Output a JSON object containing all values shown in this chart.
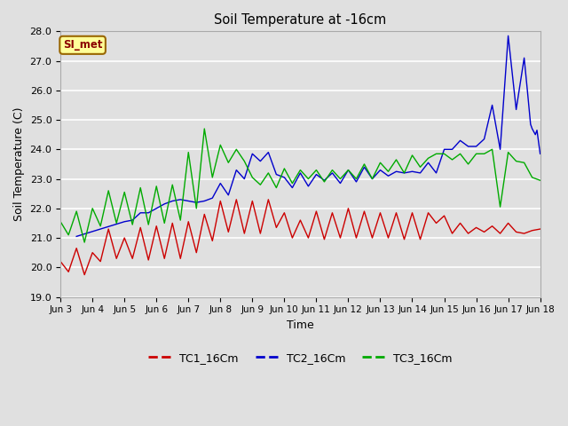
{
  "title": "Soil Temperature at -16cm",
  "xlabel": "Time",
  "ylabel": "Soil Temperature (C)",
  "ylim": [
    19.0,
    28.0
  ],
  "yticks": [
    19.0,
    20.0,
    21.0,
    22.0,
    23.0,
    24.0,
    25.0,
    26.0,
    27.0,
    28.0
  ],
  "xtick_labels": [
    "Jun 3",
    "Jun 4",
    "Jun 5",
    "Jun 6",
    "Jun 7",
    "Jun 8",
    "Jun 9",
    "Jun 10",
    "Jun 11",
    "Jun 12",
    "Jun 13",
    "Jun 14",
    "Jun 15",
    "Jun 16",
    "Jun 17",
    "Jun 18"
  ],
  "annotation_text": "SI_met",
  "annotation_color": "#8B0000",
  "annotation_bg": "#FFFF99",
  "annotation_border": "#996600",
  "tc1_color": "#CC0000",
  "tc2_color": "#0000CC",
  "tc3_color": "#00AA00",
  "background_color": "#E0E0E0",
  "plot_bg": "#E0E0E0",
  "grid_color": "#FFFFFF",
  "tc1_label": "TC1_16Cm",
  "tc2_label": "TC2_16Cm",
  "tc3_label": "TC3_16Cm",
  "tc1_x": [
    0.0,
    0.25,
    0.5,
    0.75,
    1.0,
    1.25,
    1.5,
    1.75,
    2.0,
    2.25,
    2.5,
    2.75,
    3.0,
    3.25,
    3.5,
    3.75,
    4.0,
    4.25,
    4.5,
    4.75,
    5.0,
    5.25,
    5.5,
    5.75,
    6.0,
    6.25,
    6.5,
    6.75,
    7.0,
    7.25,
    7.5,
    7.75,
    8.0,
    8.25,
    8.5,
    8.75,
    9.0,
    9.25,
    9.5,
    9.75,
    10.0,
    10.25,
    10.5,
    10.75,
    11.0,
    11.25,
    11.5,
    11.75,
    12.0,
    12.25,
    12.5,
    12.75,
    13.0,
    13.25,
    13.5,
    13.75,
    14.0,
    14.25,
    14.5,
    14.75,
    15.0
  ],
  "tc1_values": [
    20.2,
    19.85,
    20.65,
    19.75,
    20.5,
    20.2,
    21.3,
    20.3,
    21.0,
    20.3,
    21.35,
    20.25,
    21.4,
    20.3,
    21.5,
    20.3,
    21.55,
    20.5,
    21.8,
    20.9,
    22.25,
    21.2,
    22.3,
    21.15,
    22.25,
    21.15,
    22.3,
    21.35,
    21.85,
    21.0,
    21.6,
    21.0,
    21.9,
    20.95,
    21.85,
    21.0,
    22.0,
    21.0,
    21.9,
    21.0,
    21.85,
    21.0,
    21.85,
    20.95,
    21.85,
    20.95,
    21.85,
    21.5,
    21.75,
    21.15,
    21.5,
    21.15,
    21.35,
    21.2,
    21.4,
    21.15,
    21.5,
    21.2,
    21.15,
    21.25,
    21.3
  ],
  "tc2_x": [
    0.5,
    2.0,
    2.25,
    2.5,
    2.75,
    3.0,
    3.25,
    3.5,
    3.75,
    4.0,
    4.25,
    4.5,
    4.75,
    5.0,
    5.25,
    5.5,
    5.75,
    6.0,
    6.25,
    6.5,
    6.75,
    7.0,
    7.25,
    7.5,
    7.75,
    8.0,
    8.25,
    8.5,
    8.75,
    9.0,
    9.25,
    9.5,
    9.75,
    10.0,
    10.25,
    10.5,
    10.75,
    11.0,
    11.25,
    11.5,
    11.75,
    12.0,
    12.25,
    12.5,
    12.75,
    13.0,
    13.25,
    13.5,
    13.75,
    14.0,
    14.25,
    14.5,
    14.6,
    14.7,
    14.75,
    14.85,
    14.9,
    15.0
  ],
  "tc2_values": [
    21.05,
    21.55,
    21.6,
    21.85,
    21.85,
    22.0,
    22.15,
    22.25,
    22.3,
    22.25,
    22.2,
    22.25,
    22.35,
    22.85,
    22.45,
    23.3,
    23.0,
    23.85,
    23.6,
    23.9,
    23.15,
    23.05,
    22.7,
    23.2,
    22.75,
    23.15,
    22.95,
    23.2,
    22.85,
    23.3,
    22.9,
    23.4,
    23.0,
    23.3,
    23.1,
    23.25,
    23.2,
    23.25,
    23.2,
    23.55,
    23.2,
    24.0,
    24.0,
    24.3,
    24.1,
    24.1,
    24.35,
    25.5,
    24.0,
    27.85,
    25.35,
    27.1,
    26.0,
    24.85,
    24.7,
    24.5,
    24.65,
    23.85
  ],
  "tc3_x": [
    0.0,
    0.25,
    0.5,
    0.75,
    1.0,
    1.25,
    1.5,
    1.75,
    2.0,
    2.25,
    2.5,
    2.75,
    3.0,
    3.25,
    3.5,
    3.75,
    4.0,
    4.25,
    4.5,
    4.75,
    5.0,
    5.25,
    5.5,
    5.75,
    6.0,
    6.25,
    6.5,
    6.75,
    7.0,
    7.25,
    7.5,
    7.75,
    8.0,
    8.25,
    8.5,
    8.75,
    9.0,
    9.25,
    9.5,
    9.75,
    10.0,
    10.25,
    10.5,
    10.75,
    11.0,
    11.25,
    11.5,
    11.75,
    12.0,
    12.25,
    12.5,
    12.75,
    13.0,
    13.25,
    13.5,
    13.75,
    14.0,
    14.25,
    14.5,
    14.75,
    15.0
  ],
  "tc3_values": [
    21.55,
    21.1,
    21.9,
    20.85,
    22.0,
    21.4,
    22.6,
    21.5,
    22.55,
    21.45,
    22.7,
    21.45,
    22.75,
    21.5,
    22.8,
    21.6,
    23.9,
    22.0,
    24.7,
    23.05,
    24.15,
    23.55,
    24.0,
    23.6,
    23.05,
    22.8,
    23.2,
    22.7,
    23.35,
    22.85,
    23.3,
    23.0,
    23.3,
    22.9,
    23.3,
    23.0,
    23.3,
    23.0,
    23.5,
    23.0,
    23.55,
    23.25,
    23.65,
    23.2,
    23.8,
    23.4,
    23.7,
    23.85,
    23.85,
    23.65,
    23.85,
    23.5,
    23.85,
    23.85,
    24.0,
    22.05,
    23.9,
    23.6,
    23.55,
    23.05,
    22.95
  ]
}
